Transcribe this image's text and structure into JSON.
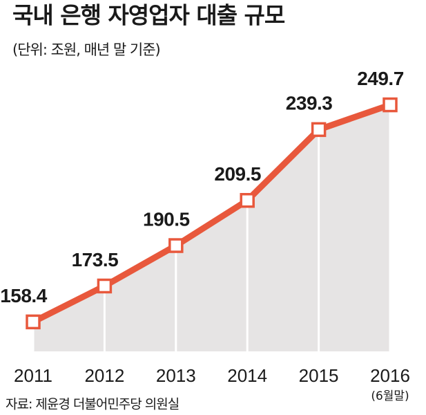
{
  "chart_data": {
    "type": "line",
    "title": "국내 은행 자영업자 대출 규모",
    "subtitle": "(단위: 조원, 매년 말 기준)",
    "categories": [
      "2011",
      "2012",
      "2013",
      "2014",
      "2015",
      "2016"
    ],
    "category_note": "(6월말)",
    "values": [
      158.4,
      173.5,
      190.5,
      209.5,
      239.3,
      249.7
    ],
    "color": "#e8583c",
    "area_color": "#e6e4e4",
    "ylim": [
      146,
      265
    ],
    "source": "자료: 제윤경 더불어민주당 의원실"
  }
}
